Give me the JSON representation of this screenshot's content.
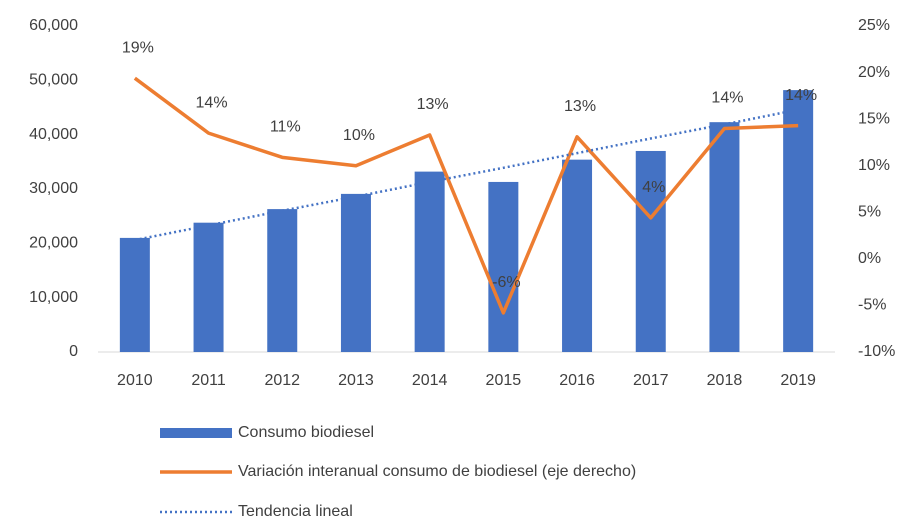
{
  "chart_data": {
    "type": "bar",
    "categories": [
      "2010",
      "2011",
      "2012",
      "2013",
      "2014",
      "2015",
      "2016",
      "2017",
      "2018",
      "2019"
    ],
    "series": [
      {
        "name": "Consumo biodiesel",
        "type": "bar",
        "color": "#4472c4",
        "values": [
          21000,
          23800,
          26300,
          29100,
          33200,
          31300,
          35400,
          37000,
          42300,
          48200
        ]
      },
      {
        "name": "Variación interanual consumo de biodiesel (eje derecho)",
        "type": "line",
        "axis": "y2",
        "color": "#ed7d31",
        "values": [
          19.4,
          13.5,
          10.9,
          10.0,
          13.3,
          -5.8,
          13.1,
          4.4,
          14.0,
          14.3
        ],
        "value_labels": [
          "19%",
          "14%",
          "11%",
          "10%",
          "13%",
          "-6%",
          "13%",
          "4%",
          "14%",
          "14%"
        ]
      },
      {
        "name": "Tendencia lineal",
        "type": "trend",
        "color": "#4472c4",
        "values": [
          20600,
          23300,
          26000,
          28600,
          31300,
          33900,
          36600,
          39300,
          41900,
          44600
        ]
      }
    ],
    "ylim": [
      0,
      60000
    ],
    "yticks": [
      0,
      {
        "value": 10000,
        "label": "10,000"
      },
      {
        "value": 20000,
        "label": "20,000"
      },
      {
        "value": 30000,
        "label": "30,000"
      },
      {
        "value": 40000,
        "label": "40,000"
      },
      {
        "value": 50000,
        "label": "50,000"
      },
      {
        "value": 60000,
        "label": "60,000"
      }
    ],
    "y2lim": [
      -10,
      25
    ],
    "y2ticks": [
      {
        "value": -10,
        "label": "-10%"
      },
      {
        "value": -5,
        "label": "-5%"
      },
      {
        "value": 0,
        "label": "0%"
      },
      {
        "value": 5,
        "label": "5%"
      },
      {
        "value": 10,
        "label": "10%"
      },
      {
        "value": 15,
        "label": "15%"
      },
      {
        "value": 20,
        "label": "20%"
      },
      {
        "value": 25,
        "label": "25%"
      }
    ],
    "legend": "bottom"
  }
}
